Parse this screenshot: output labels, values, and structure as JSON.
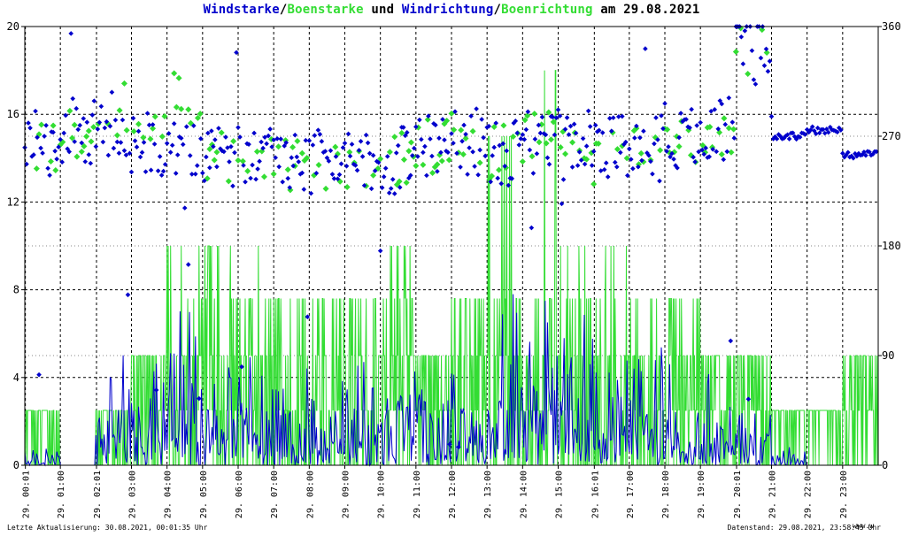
{
  "title": {
    "part1": "Windstarke",
    "sep1": "/",
    "part2": "Boenstarke",
    "mid": " und ",
    "part3": "Windrichtung",
    "sep2": "/",
    "part4": "Boenrichtung",
    "suffix": " am 29.08.2021"
  },
  "footer": {
    "left": "Letzte Aktualisierung: 30.08.2021, 00:01:35 Uhr",
    "right": "Datenstand: 29.08.2021, 23:58:45 Uhr",
    "logo": "www.w"
  },
  "colors": {
    "wind": "#0000cc",
    "gust": "#33dd33",
    "grid": "#000000",
    "background": "#ffffff"
  },
  "chart_data": {
    "type": "line",
    "y_left": {
      "ticks": [
        "0",
        "4",
        "8",
        "12",
        "16",
        "20"
      ],
      "range": [
        0,
        20
      ]
    },
    "y_right": {
      "ticks": [
        "0",
        "90",
        "180",
        "270",
        "360"
      ],
      "range": [
        0,
        360
      ]
    },
    "x": {
      "range_hours": [
        0,
        24
      ],
      "ticks": [
        {
          "h": 0.0167,
          "label": "29. 00:01"
        },
        {
          "h": 1,
          "label": "29. 01:00"
        },
        {
          "h": 2.0167,
          "label": "29. 02:01"
        },
        {
          "h": 3,
          "label": "29. 03:00"
        },
        {
          "h": 4,
          "label": "29. 04:00"
        },
        {
          "h": 5,
          "label": "29. 05:00"
        },
        {
          "h": 6,
          "label": "29. 06:00"
        },
        {
          "h": 7,
          "label": "29. 07:00"
        },
        {
          "h": 8,
          "label": "29. 08:00"
        },
        {
          "h": 9,
          "label": "29. 09:00"
        },
        {
          "h": 10,
          "label": "29. 10:00"
        },
        {
          "h": 11,
          "label": "29. 11:00"
        },
        {
          "h": 12,
          "label": "29. 12:00"
        },
        {
          "h": 13,
          "label": "29. 13:00"
        },
        {
          "h": 14,
          "label": "29. 14:00"
        },
        {
          "h": 15,
          "label": "29. 15:00"
        },
        {
          "h": 16.0167,
          "label": "29. 16:01"
        },
        {
          "h": 17,
          "label": "29. 17:00"
        },
        {
          "h": 18,
          "label": "29. 18:00"
        },
        {
          "h": 19,
          "label": "29. 19:00"
        },
        {
          "h": 20.0167,
          "label": "29. 20:01"
        },
        {
          "h": 21,
          "label": "29. 21:00"
        },
        {
          "h": 22,
          "label": "29. 22:00"
        },
        {
          "h": 23,
          "label": "29. 23:00"
        }
      ]
    },
    "series": [
      {
        "key": "wind_speed",
        "unit": "m/s",
        "axis": "left",
        "style": "line",
        "hourly_avg": [
          0.2,
          0,
          1.2,
          1.4,
          1.8,
          1.3,
          1.5,
          1.6,
          1.3,
          1.3,
          1.2,
          1.1,
          1.5,
          2.6,
          1.9,
          1.9,
          1.6,
          1.5,
          1.5,
          1.1,
          0.7,
          0.2,
          0,
          0
        ]
      },
      {
        "key": "gust_speed",
        "unit": "m/s",
        "axis": "left",
        "style": "line",
        "hourly_max": [
          2.5,
          0,
          2.5,
          5,
          10,
          10,
          10,
          7.6,
          7.6,
          7.6,
          10,
          5,
          7.6,
          15,
          18,
          10,
          10,
          7.6,
          7.6,
          5,
          5,
          2.5,
          2.5,
          5
        ]
      },
      {
        "key": "wind_direction",
        "unit": "deg",
        "axis": "right",
        "style": "points",
        "hourly_avg": [
          265,
          275,
          280,
          265,
          265,
          250,
          255,
          250,
          250,
          250,
          250,
          260,
          265,
          255,
          265,
          265,
          260,
          260,
          270,
          275,
          340,
          270,
          275,
          255
        ]
      },
      {
        "key": "gust_direction",
        "unit": "deg",
        "axis": "right",
        "style": "points",
        "hourly_avg": [
          255,
          270,
          290,
          265,
          300,
          250,
          255,
          245,
          250,
          245,
          250,
          260,
          265,
          255,
          270,
          260,
          255,
          255,
          265,
          270,
          345,
          null,
          null,
          null
        ]
      }
    ]
  }
}
